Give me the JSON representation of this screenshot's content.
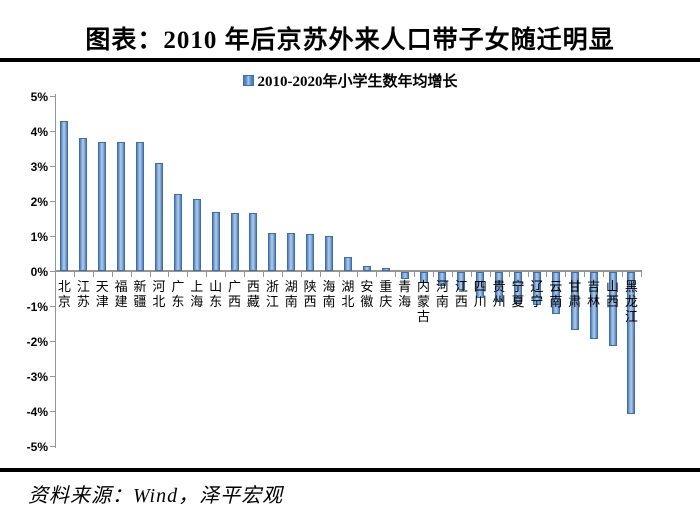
{
  "header": {
    "title": "图表：2010 年后京苏外来人口带子女随迁明显"
  },
  "legend": {
    "label": "2010-2020年小学生数年均增长",
    "swatch_color": "#4f81bd"
  },
  "chart_data": {
    "type": "bar",
    "title": "2010-2020年小学生数年均增长",
    "categories": [
      "北京",
      "江苏",
      "天津",
      "福建",
      "新疆",
      "河北",
      "广东",
      "上海",
      "山东",
      "广西",
      "西藏",
      "浙江",
      "湖南",
      "陕西",
      "海南",
      "湖北",
      "安徽",
      "重庆",
      "青海",
      "内蒙古",
      "河南",
      "江西",
      "四川",
      "贵州",
      "宁夏",
      "辽宁",
      "云南",
      "甘肃",
      "吉林",
      "山西",
      "黑龙江"
    ],
    "values": [
      4.3,
      3.8,
      3.7,
      3.7,
      3.7,
      3.1,
      2.2,
      2.05,
      1.7,
      1.65,
      1.65,
      1.1,
      1.1,
      1.05,
      1.0,
      0.4,
      0.15,
      0.1,
      -0.2,
      -0.3,
      -0.4,
      -0.5,
      -0.75,
      -0.85,
      -0.9,
      -0.95,
      -1.2,
      -1.65,
      -1.9,
      -2.1,
      -4.05
    ],
    "unit": "%",
    "ylim": [
      -5,
      5
    ],
    "y_tick_labels": [
      "5%",
      "4%",
      "3%",
      "2%",
      "1%",
      "0%",
      "-1%",
      "-2%",
      "-3%",
      "-4%",
      "-5%"
    ],
    "bar_color": "#4f81bd",
    "grid": "off",
    "legend_position": "top-center"
  },
  "footer": {
    "source": "资料来源：Wind，泽平宏观"
  }
}
